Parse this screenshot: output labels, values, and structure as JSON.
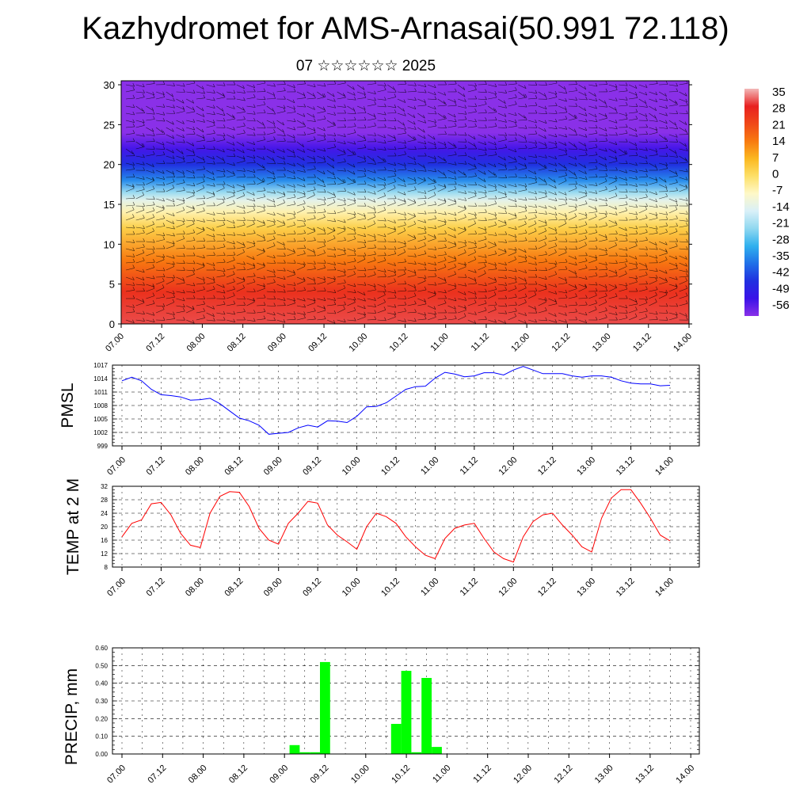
{
  "header": {
    "title": "Kazhydromet for AMS-Arnasai(50.991 72.118)",
    "subtitle": "07 ☆☆☆☆☆☆ 2025"
  },
  "chart_data": [
    {
      "type": "heatmap",
      "name": "upper-air-cross-section",
      "x_tick_labels": [
        "07.00",
        "07.12",
        "08.00",
        "08.12",
        "09.00",
        "09.12",
        "10.00",
        "10.12",
        "11.00",
        "11.12",
        "12.00",
        "12.12",
        "13.00",
        "13.12",
        "14.00"
      ],
      "y_ticks": [
        0,
        5,
        10,
        15,
        20,
        25,
        30
      ],
      "ylim": [
        0,
        30.5
      ],
      "colorbar_labels": [
        "35",
        "28",
        "21",
        "14",
        "7",
        "0",
        "-7",
        "-14",
        "-21",
        "-28",
        "-35",
        "-42",
        "-49",
        "-56"
      ],
      "colorbar_colors": [
        "#f2b8b8",
        "#e82020",
        "#f04818",
        "#f87a10",
        "#fbb820",
        "#fde068",
        "#fef8c8",
        "#d9f0f8",
        "#90d8f0",
        "#30b0ee",
        "#2070e8",
        "#2030e0",
        "#3a12e8",
        "#8a30e8"
      ],
      "wind_barbs": true,
      "profile": [
        {
          "z": 0,
          "t": 30
        },
        {
          "z": 4,
          "t": 25
        },
        {
          "z": 8,
          "t": 14
        },
        {
          "z": 12,
          "t": 3
        },
        {
          "z": 14,
          "t": -5
        },
        {
          "z": 15.5,
          "t": -12
        },
        {
          "z": 16.5,
          "t": -20
        },
        {
          "z": 18,
          "t": -32
        },
        {
          "z": 20,
          "t": -42
        },
        {
          "z": 22,
          "t": -50
        },
        {
          "z": 24,
          "t": -56
        },
        {
          "z": 30.5,
          "t": -56
        }
      ]
    },
    {
      "type": "line",
      "name": "pmsl",
      "ylabel": "PMSL",
      "ylim": [
        999,
        1017
      ],
      "y_ticks": [
        999,
        1002,
        1005,
        1008,
        1011,
        1014,
        1017
      ],
      "x_tick_labels": [
        "07.00",
        "07.12",
        "08.00",
        "08.12",
        "09.00",
        "09.12",
        "10.00",
        "10.12",
        "11.00",
        "11.12",
        "12.00",
        "12.12",
        "13.00",
        "13.12",
        "14.00"
      ],
      "color": "#0000ff",
      "x_hours": [
        0,
        3,
        6,
        9,
        12,
        15,
        18,
        21,
        24,
        27,
        30,
        33,
        36,
        39,
        42,
        45,
        48,
        51,
        54,
        57,
        60,
        63,
        66,
        69,
        72,
        75,
        78,
        81,
        84,
        87,
        90,
        93,
        96,
        99,
        102,
        105,
        108,
        111,
        114,
        117,
        120,
        123,
        126,
        129,
        132,
        135,
        138,
        141,
        144,
        147,
        150,
        153,
        156,
        159,
        162,
        165,
        168
      ],
      "values": [
        1013.5,
        1014.3,
        1013.5,
        1011.6,
        1010.4,
        1010.2,
        1009.9,
        1009.2,
        1009.3,
        1009.6,
        1008.4,
        1006.8,
        1005.2,
        1004.6,
        1003.6,
        1001.6,
        1001.8,
        1002,
        1003,
        1003.6,
        1003.2,
        1004.6,
        1004.5,
        1004.2,
        1005.6,
        1007.7,
        1007.8,
        1008.6,
        1010.1,
        1011.6,
        1012.2,
        1012.3,
        1014.1,
        1015.4,
        1015,
        1014.4,
        1014.6,
        1015.3,
        1015.3,
        1014.8,
        1015.9,
        1016.7,
        1015.9,
        1015.1,
        1015.1,
        1015.1,
        1014.6,
        1014.3,
        1014.6,
        1014.6,
        1014.3,
        1013.5,
        1013,
        1012.8,
        1012.8,
        1012.4,
        1012.5
      ]
    },
    {
      "type": "line",
      "name": "temp-2m",
      "ylabel": "TEMP at 2 M",
      "ylim": [
        8,
        32
      ],
      "y_ticks": [
        8,
        12,
        16,
        20,
        24,
        28,
        32
      ],
      "x_tick_labels": [
        "07.00",
        "07.12",
        "08.00",
        "08.12",
        "09.00",
        "09.12",
        "10.00",
        "10.12",
        "11.00",
        "11.12",
        "12.00",
        "12.12",
        "13.00",
        "13.12",
        "14.00"
      ],
      "color": "#ff0000",
      "x_hours": [
        0,
        3,
        6,
        9,
        12,
        15,
        18,
        21,
        24,
        27,
        30,
        33,
        36,
        39,
        42,
        45,
        48,
        51,
        54,
        57,
        60,
        63,
        66,
        69,
        72,
        75,
        78,
        81,
        84,
        87,
        90,
        93,
        96,
        99,
        102,
        105,
        108,
        111,
        114,
        117,
        120,
        123,
        126,
        129,
        132,
        135,
        138,
        141,
        144,
        147,
        150,
        153,
        156,
        159,
        162,
        165,
        168
      ],
      "values": [
        17,
        21,
        22,
        26.8,
        27.2,
        23.5,
        18,
        14.5,
        13.8,
        24,
        29,
        30.4,
        30.2,
        26,
        19.5,
        16,
        14.8,
        21,
        24,
        27.5,
        27,
        20.5,
        17.5,
        15.5,
        13.3,
        20,
        24,
        23,
        21,
        17,
        14,
        11.5,
        10.5,
        16.5,
        19.5,
        20.5,
        21,
        16.5,
        12.5,
        10.5,
        9.5,
        17,
        21.5,
        23.5,
        24,
        20.5,
        17.5,
        14,
        12.5,
        22.5,
        28.5,
        31,
        31,
        27,
        22.5,
        17.5,
        15.8
      ]
    },
    {
      "type": "bar",
      "name": "precip",
      "ylabel": "PRECIP, mm",
      "ylim": [
        0,
        0.6
      ],
      "y_ticks": [
        "0.00",
        "0.10",
        "0.20",
        "0.30",
        "0.40",
        "0.50",
        "0.60"
      ],
      "x_tick_labels": [
        "07.00",
        "07.12",
        "08.00",
        "08.12",
        "09.00",
        "09.12",
        "10.00",
        "10.12",
        "11.00",
        "11.12",
        "12.00",
        "12.12",
        "13.00",
        "13.12",
        "14.00"
      ],
      "color": "#00ff00",
      "bars": [
        {
          "x_hour": 51,
          "value": 0.05
        },
        {
          "x_hour": 54,
          "value": 0.01
        },
        {
          "x_hour": 57,
          "value": 0.01
        },
        {
          "x_hour": 60,
          "value": 0.52
        },
        {
          "x_hour": 81,
          "value": 0.17
        },
        {
          "x_hour": 84,
          "value": 0.47
        },
        {
          "x_hour": 87,
          "value": 0.01
        },
        {
          "x_hour": 90,
          "value": 0.43
        },
        {
          "x_hour": 93,
          "value": 0.04
        }
      ]
    }
  ]
}
